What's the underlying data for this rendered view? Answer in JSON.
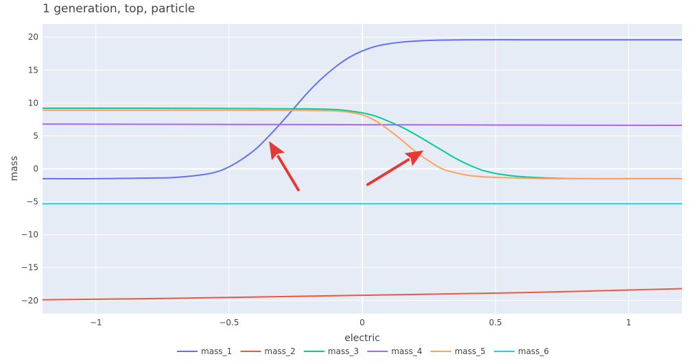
{
  "chart_data": {
    "type": "line",
    "title": "1 generation, top, particle",
    "xlabel": "electric",
    "ylabel": "mass",
    "xlim": [
      -1.2,
      1.2
    ],
    "ylim": [
      -22,
      22
    ],
    "xticks": [
      -1,
      -0.5,
      0,
      0.5,
      1
    ],
    "xtick_labels": [
      "−1",
      "−0.5",
      "0",
      "0.5",
      "1"
    ],
    "yticks": [
      -20,
      -15,
      -10,
      -5,
      0,
      5,
      10,
      15,
      20
    ],
    "ytick_labels": [
      "−20",
      "−15",
      "−10",
      "−5",
      "0",
      "5",
      "10",
      "15",
      "20"
    ],
    "grid": true,
    "legend_position": "bottom-center",
    "series": [
      {
        "name": "mass_1",
        "color": "#636efa",
        "x": [
          -1.2,
          -1.0,
          -0.8,
          -0.7,
          -0.6,
          -0.55,
          -0.5,
          -0.45,
          -0.4,
          -0.35,
          -0.3,
          -0.25,
          -0.2,
          -0.15,
          -0.1,
          -0.05,
          0.0,
          0.05,
          0.1,
          0.15,
          0.2,
          0.25,
          0.3,
          0.4,
          0.6,
          0.8,
          1.0,
          1.2
        ],
        "y": [
          -1.5,
          -1.5,
          -1.4,
          -1.3,
          -0.9,
          -0.5,
          0.3,
          1.5,
          3.0,
          5.0,
          7.2,
          9.5,
          11.8,
          13.8,
          15.5,
          16.9,
          17.9,
          18.6,
          19.0,
          19.25,
          19.4,
          19.5,
          19.55,
          19.6,
          19.6,
          19.6,
          19.6,
          19.6
        ]
      },
      {
        "name": "mass_2",
        "color": "#ef553b",
        "x": [
          -1.2,
          -0.6,
          0.0,
          0.6,
          1.2
        ],
        "y": [
          -19.9,
          -19.6,
          -19.2,
          -18.8,
          -18.2
        ]
      },
      {
        "name": "mass_3",
        "color": "#00cc96",
        "x": [
          -1.2,
          -0.8,
          -0.4,
          -0.2,
          -0.1,
          -0.05,
          0.0,
          0.05,
          0.1,
          0.15,
          0.2,
          0.25,
          0.3,
          0.35,
          0.4,
          0.45,
          0.5,
          0.55,
          0.6,
          0.7,
          0.8,
          1.0,
          1.2
        ],
        "y": [
          9.2,
          9.2,
          9.15,
          9.1,
          9.0,
          8.8,
          8.5,
          8.0,
          7.2,
          6.3,
          5.2,
          4.0,
          2.8,
          1.6,
          0.6,
          -0.2,
          -0.7,
          -1.0,
          -1.2,
          -1.4,
          -1.5,
          -1.5,
          -1.5
        ]
      },
      {
        "name": "mass_4",
        "color": "#ab63fa",
        "x": [
          -1.2,
          0.0,
          1.2
        ],
        "y": [
          6.8,
          6.7,
          6.6
        ]
      },
      {
        "name": "mass_5",
        "color": "#ffa15a",
        "x": [
          -1.2,
          -0.8,
          -0.4,
          -0.2,
          -0.1,
          -0.05,
          0.0,
          0.05,
          0.1,
          0.15,
          0.2,
          0.25,
          0.3,
          0.35,
          0.4,
          0.45,
          0.5,
          0.6,
          0.7,
          0.8,
          1.0,
          1.2
        ],
        "y": [
          8.9,
          8.9,
          8.9,
          8.85,
          8.8,
          8.6,
          8.2,
          7.3,
          5.9,
          4.3,
          2.6,
          1.2,
          0.0,
          -0.6,
          -1.0,
          -1.2,
          -1.3,
          -1.4,
          -1.5,
          -1.5,
          -1.5,
          -1.5
        ]
      },
      {
        "name": "mass_6",
        "color": "#19d3f3",
        "x": [
          -1.2,
          0.0,
          1.2
        ],
        "y": [
          -5.3,
          -5.3,
          -5.3
        ]
      }
    ],
    "annotations": [
      {
        "type": "arrow",
        "color": "#e53935",
        "from": [
          -0.24,
          -3.2
        ],
        "to": [
          -0.35,
          4.2
        ]
      },
      {
        "type": "arrow",
        "color": "#e53935",
        "from": [
          0.02,
          -2.4
        ],
        "to": [
          0.23,
          2.8
        ]
      }
    ]
  }
}
